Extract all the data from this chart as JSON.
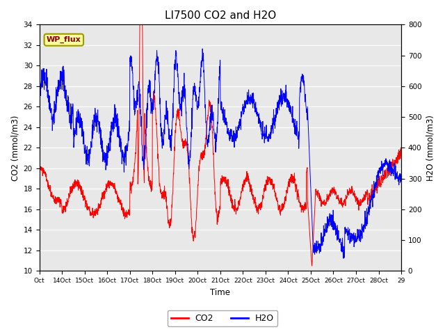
{
  "title": "LI7500 CO2 and H2O",
  "xlabel": "Time",
  "ylabel_left": "CO2 (mmol/m3)",
  "ylabel_right": "H2O (mmol/m3)",
  "ylim_left": [
    10,
    34
  ],
  "ylim_right": [
    0,
    800
  ],
  "yticks_left": [
    10,
    12,
    14,
    16,
    18,
    20,
    22,
    24,
    26,
    28,
    30,
    32,
    34
  ],
  "yticks_right": [
    0,
    100,
    200,
    300,
    400,
    500,
    600,
    700,
    800
  ],
  "x_tick_labels": [
    "Oct",
    "14Oct",
    "15Oct",
    "16Oct",
    "17Oct",
    "18Oct",
    "19Oct",
    "20Oct",
    "21Oct",
    "22Oct",
    "23Oct",
    "24Oct",
    "25Oct",
    "26Oct",
    "27Oct",
    "28Oct",
    "29"
  ],
  "annotation_text": "WP_flux",
  "co2_color": "#FF0000",
  "h2o_color": "#0000FF",
  "title_fontsize": 11,
  "figsize": [
    6.4,
    4.8
  ],
  "dpi": 100
}
